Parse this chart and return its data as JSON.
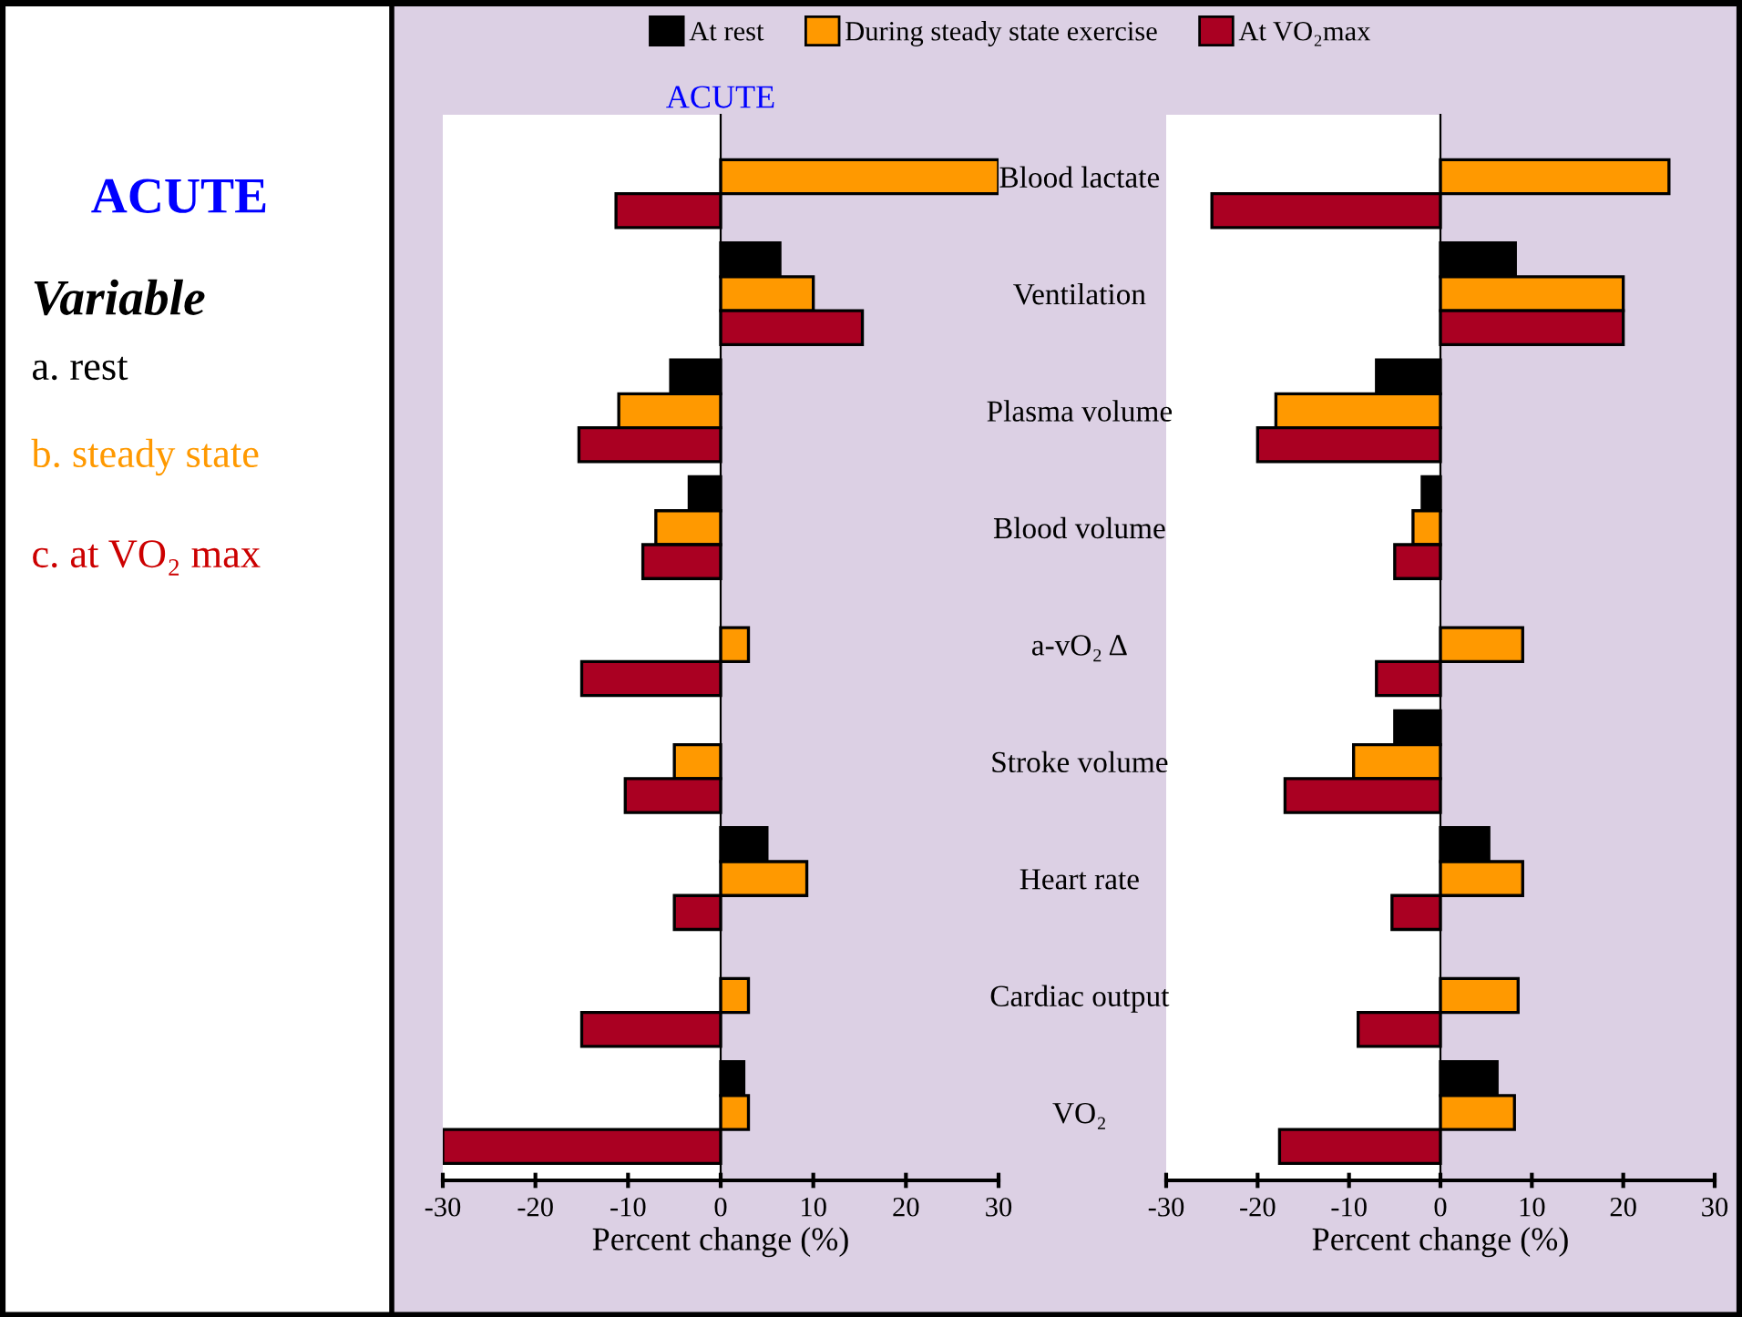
{
  "chart_data": [
    {
      "type": "bar",
      "orientation": "horizontal",
      "title": "ACUTE",
      "xlabel": "Percent change (%)",
      "categories": [
        "Blood lactate",
        "Ventilation",
        "Plasma volume",
        "Blood volume",
        "a-vO₂ Δ",
        "Stroke volume",
        "Heart rate",
        "Cardiac output",
        "VO₂"
      ],
      "series": [
        {
          "name": "At rest",
          "color": "#000000",
          "values": [
            null,
            6.4,
            -5.4,
            -3.4,
            null,
            null,
            5,
            null,
            2.5
          ]
        },
        {
          "name": "During steady state exercise",
          "color": "#ff9900",
          "values": [
            30,
            10,
            -11,
            -7,
            3,
            -5,
            9.3,
            3,
            3
          ]
        },
        {
          "name": "At VO₂max",
          "color": "#aa0022",
          "values": [
            -11.3,
            15.3,
            -15.3,
            -8.4,
            -15,
            -10.3,
            -5,
            -15,
            -30
          ]
        }
      ],
      "xlim": [
        -30,
        30
      ],
      "xticks": [
        -30,
        -20,
        -10,
        0,
        10,
        20,
        30
      ],
      "bands": [
        {
          "axis": "x",
          "from": -30,
          "to": 0,
          "color": "#ffffff"
        }
      ],
      "legend": "top",
      "annotations": [
        "ACUTE",
        "Variable",
        "a. rest",
        "b. steady state",
        "c. at VO₂ max"
      ]
    },
    {
      "type": "bar",
      "orientation": "horizontal",
      "xlabel": "Percent change (%)",
      "categories": [
        null,
        null,
        null,
        null,
        null,
        null,
        null,
        null,
        null
      ],
      "series": [
        {
          "color": "#000000",
          "values": [
            null,
            8.2,
            -7,
            -2,
            null,
            -5,
            5.3,
            null,
            6.2
          ]
        },
        {
          "color": "#ff9900",
          "values": [
            25,
            20,
            -18,
            -3,
            9,
            -9.5,
            9,
            8.5,
            8.1
          ]
        },
        {
          "color": "#aa0022",
          "values": [
            -25,
            20,
            -20,
            -5,
            -7,
            -17,
            -5.3,
            -9,
            -17.6
          ]
        }
      ],
      "xlim": [
        -30,
        30
      ],
      "xticks": [
        -30,
        -20,
        -10,
        0,
        10,
        20,
        30
      ],
      "bands": [
        {
          "axis": "x",
          "from": -30,
          "to": 0,
          "color": "#ffffff"
        }
      ],
      "tick_labels": "x"
    }
  ]
}
